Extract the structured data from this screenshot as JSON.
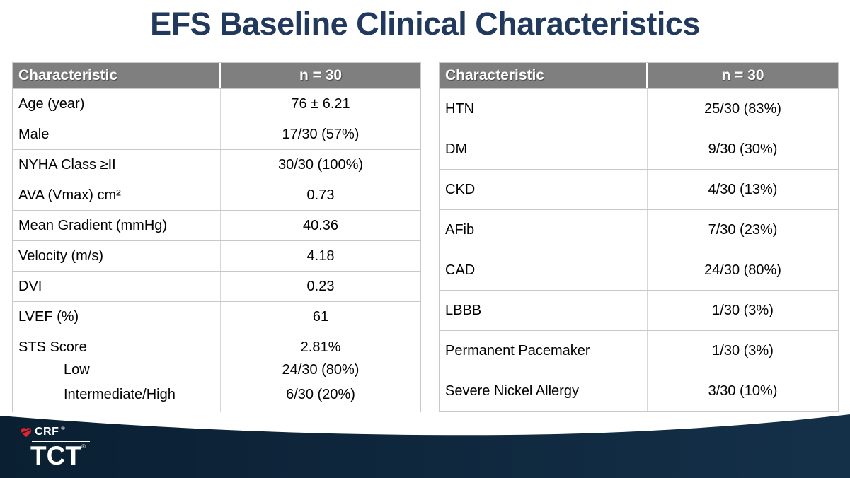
{
  "title": "EFS Baseline Clinical Characteristics",
  "colors": {
    "title_text": "#20395c",
    "header_bg": "#7f7f7f",
    "header_text": "#ffffff",
    "row_border": "#c9c9c9",
    "band_dark": "#0a1f32",
    "band_light": "#143049",
    "logo_red": "#e02330"
  },
  "tables": {
    "left": {
      "headers": [
        "Characteristic",
        "n = 30"
      ],
      "rows": [
        {
          "label": "Age (year)",
          "value": "76 ± 6.21"
        },
        {
          "label": "Male",
          "value": "17/30 (57%)"
        },
        {
          "label": "NYHA Class ≥II",
          "value": "30/30 (100%)"
        },
        {
          "label": "AVA (Vmax) cm²",
          "value": "0.73"
        },
        {
          "label": "Mean Gradient (mmHg)",
          "value": "40.36"
        },
        {
          "label": "Velocity (m/s)",
          "value": "4.18"
        },
        {
          "label": "DVI",
          "value": "0.23"
        },
        {
          "label": "LVEF (%)",
          "value": "61"
        },
        {
          "label": "STS Score",
          "value": "2.81%"
        },
        {
          "label": "Low",
          "value": "24/30 (80%)",
          "sub": true
        },
        {
          "label": "Intermediate/High",
          "value": "6/30 (20%)",
          "sub": true
        }
      ]
    },
    "right": {
      "headers": [
        "Characteristic",
        "n = 30"
      ],
      "rows": [
        {
          "label": "HTN",
          "value": "25/30 (83%)"
        },
        {
          "label": "DM",
          "value": "9/30 (30%)"
        },
        {
          "label": "CKD",
          "value": "4/30 (13%)"
        },
        {
          "label": "AFib",
          "value": "7/30 (23%)"
        },
        {
          "label": "CAD",
          "value": "24/30 (80%)"
        },
        {
          "label": "LBBB",
          "value": "1/30 (3%)"
        },
        {
          "label": "Permanent Pacemaker",
          "value": "1/30 (3%)"
        },
        {
          "label": "Severe Nickel Allergy",
          "value": "3/30 (10%)"
        }
      ]
    }
  },
  "footer": {
    "logo_primary": "CRF",
    "logo_secondary": "TCT",
    "registered_mark": "®",
    "heart_icon": "crf-heart-icon"
  }
}
